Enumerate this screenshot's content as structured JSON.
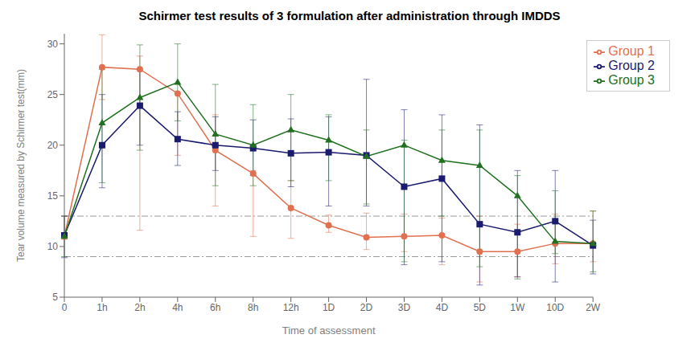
{
  "chart_data": {
    "type": "line",
    "title": "Schirmer test results of 3 formulation after administration through IMDDS",
    "x_label": "Time of assessment",
    "y_label": "Tear volume measured by Schirmer test(mm)",
    "categories": [
      "0",
      "1h",
      "2h",
      "4h",
      "6h",
      "8h",
      "12h",
      "1D",
      "2D",
      "3D",
      "4D",
      "5D",
      "1W",
      "10D",
      "2W"
    ],
    "ylim": [
      5,
      31
    ],
    "yticks": [
      5,
      10,
      15,
      20,
      25,
      30
    ],
    "hlines": [
      13.0,
      9.0
    ],
    "grid": false,
    "legend": "upper right",
    "series": [
      {
        "name": "Group 1",
        "color": "#E07050",
        "marker": "circle",
        "values": [
          11.0,
          27.7,
          27.5,
          25.1,
          19.5,
          17.2,
          13.8,
          12.1,
          10.9,
          11.0,
          11.1,
          9.5,
          9.5,
          10.3,
          10.3
        ],
        "upper": [
          13.0,
          30.9,
          28.8,
          25.2,
          23.0,
          17.5,
          16.5,
          13.1,
          13.3,
          13.2,
          12.8,
          13.0,
          12.2,
          13.2,
          13.5
        ],
        "lower": [
          10.7,
          24.5,
          11.6,
          19.0,
          14.0,
          11.0,
          10.8,
          11.4,
          9.7,
          9.5,
          8.2,
          6.5,
          7.0,
          8.3,
          8.5
        ]
      },
      {
        "name": "Group 2",
        "color": "#1A1A6E",
        "marker": "square",
        "values": [
          11.1,
          20.0,
          23.9,
          20.6,
          20.0,
          19.7,
          19.2,
          19.3,
          19.0,
          15.9,
          16.7,
          12.2,
          11.4,
          12.5,
          10.1
        ],
        "upper": [
          13.0,
          25.0,
          27.5,
          23.3,
          22.8,
          22.5,
          22.6,
          22.8,
          26.5,
          23.5,
          23.0,
          22.0,
          17.5,
          17.5,
          12.6
        ],
        "lower": [
          8.9,
          15.8,
          20.0,
          18.0,
          17.5,
          17.0,
          15.9,
          14.0,
          14.0,
          8.2,
          8.5,
          6.2,
          7.0,
          6.5,
          7.3
        ]
      },
      {
        "name": "Group 3",
        "color": "#207020",
        "marker": "triangle",
        "values": [
          11.0,
          22.2,
          24.7,
          26.2,
          21.1,
          20.0,
          21.5,
          20.5,
          18.9,
          20.0,
          18.5,
          18.0,
          15.0,
          10.5,
          10.3
        ],
        "upper": [
          13.0,
          27.5,
          29.9,
          30.0,
          26.0,
          24.0,
          25.0,
          23.0,
          21.5,
          20.5,
          21.5,
          21.5,
          17.0,
          15.5,
          13.5
        ],
        "lower": [
          9.0,
          16.3,
          19.5,
          22.4,
          16.0,
          16.0,
          16.5,
          16.5,
          14.2,
          8.5,
          13.0,
          8.0,
          6.8,
          9.3,
          7.5
        ]
      }
    ]
  }
}
